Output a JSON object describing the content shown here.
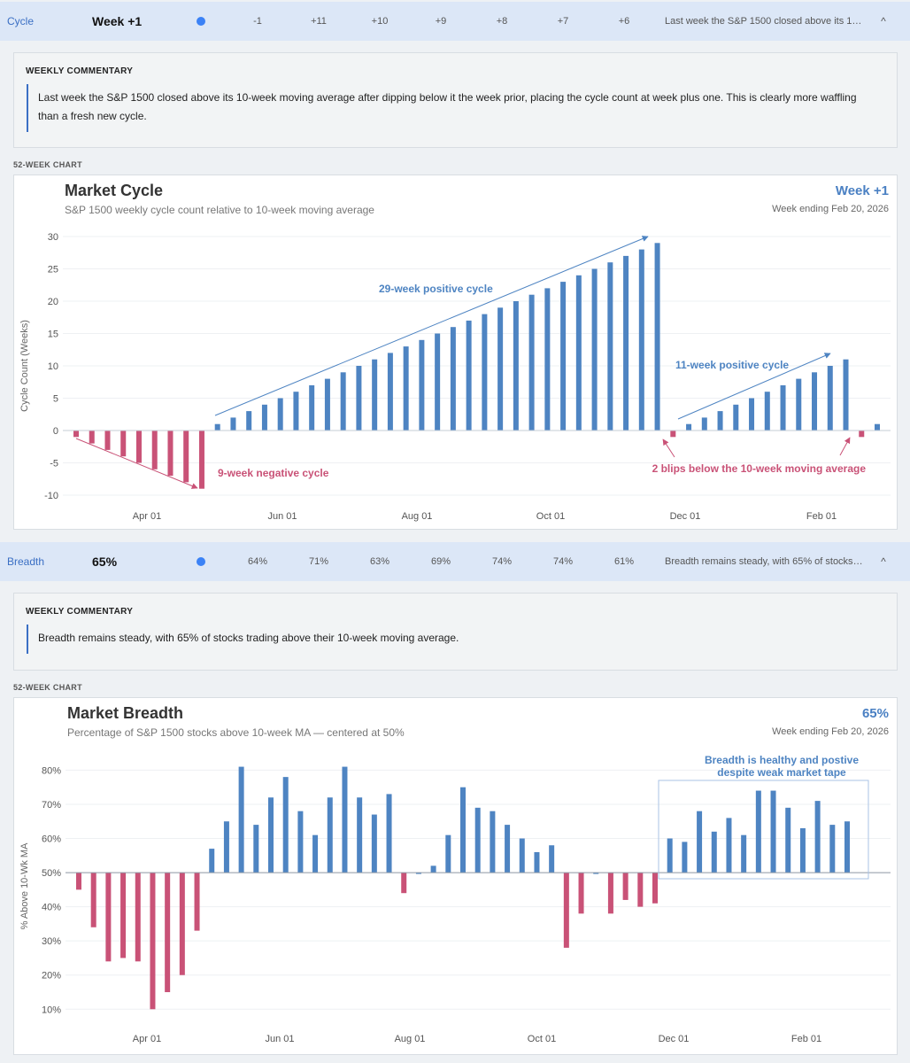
{
  "colors": {
    "positive": "#4e84c2",
    "negative": "#c95277",
    "accent": "#3a6fc4",
    "header_bg": "#dce7f7"
  },
  "cycle": {
    "header": {
      "name": "Cycle",
      "value": "Week +1",
      "weeks": [
        "-1",
        "+11",
        "+10",
        "+9",
        "+8",
        "+7",
        "+6"
      ],
      "summary": "Last week the S&P 1500 closed above its 10-week moving average after dipping below it the week prior, placing the cycle count at week plus one. This is clearly more waffling than a fresh new cycle.",
      "chevron": "^"
    },
    "commentary_title": "WEEKLY COMMENTARY",
    "commentary": "Last week the S&P 1500 closed above its 10-week moving average after dipping below it the week prior, placing the cycle count at week plus one. This is clearly more waffling than a fresh new cycle.",
    "section_label": "52-WEEK CHART",
    "chart_title": "Market Cycle",
    "chart_subtitle": "S&P 1500 weekly cycle count relative to 10-week moving average",
    "chart_headline": "Week +1",
    "chart_week": "Week ending Feb 20, 2026"
  },
  "breadth": {
    "header": {
      "name": "Breadth",
      "value": "65%",
      "weeks": [
        "64%",
        "71%",
        "63%",
        "69%",
        "74%",
        "74%",
        "61%"
      ],
      "summary": "Breadth remains steady, with 65% of stocks trading above their 10-week moving average.",
      "chevron": "^"
    },
    "commentary_title": "WEEKLY COMMENTARY",
    "commentary": "Breadth remains steady, with 65% of stocks trading above their 10-week moving average.",
    "section_label": "52-WEEK CHART",
    "chart_title": "Market Breadth",
    "chart_subtitle": "Percentage of S&P 1500 stocks above 10-week MA — centered at 50%",
    "chart_headline": "65%",
    "chart_week": "Week ending Feb 20, 2026"
  },
  "chart_data": [
    {
      "type": "bar",
      "title": "Market Cycle",
      "subtitle": "S&P 1500 weekly cycle count relative to 10-week moving average",
      "xlabel": "",
      "ylabel": "Cycle Count (Weeks)",
      "ylim": [
        -10,
        30
      ],
      "yticks": [
        -10,
        -5,
        0,
        5,
        10,
        15,
        20,
        25,
        30
      ],
      "xticks": [
        "Apr 01",
        "Jun 01",
        "Aug 01",
        "Oct 01",
        "Dec 01",
        "Feb 01"
      ],
      "baseline": 0,
      "values": [
        -1,
        -2,
        -3,
        -4,
        -5,
        -6,
        -7,
        -8,
        -9,
        1,
        2,
        3,
        4,
        5,
        6,
        7,
        8,
        9,
        10,
        11,
        12,
        13,
        14,
        15,
        16,
        17,
        18,
        19,
        20,
        21,
        22,
        23,
        24,
        25,
        26,
        27,
        28,
        29,
        -1,
        1,
        2,
        3,
        4,
        5,
        6,
        7,
        8,
        9,
        10,
        11,
        -1,
        1
      ],
      "annotations": [
        {
          "text": "9-week negative cycle",
          "color": "negative"
        },
        {
          "text": "29-week positive cycle",
          "color": "positive"
        },
        {
          "text": "11-week positive cycle",
          "color": "positive"
        },
        {
          "text": "2 blips below the 10-week moving average",
          "color": "negative"
        }
      ],
      "grid": true
    },
    {
      "type": "bar",
      "title": "Market Breadth",
      "subtitle": "Percentage of S&P 1500 stocks above 10-week MA — centered at 50%",
      "xlabel": "",
      "ylabel": "% Above 10-Wk MA",
      "ylim": [
        8,
        84
      ],
      "yticks": [
        10,
        20,
        30,
        40,
        50,
        60,
        70,
        80
      ],
      "yticklabels": [
        "10%",
        "20%",
        "30%",
        "40%",
        "50%",
        "60%",
        "70%",
        "80%"
      ],
      "xticks": [
        "Apr 01",
        "Jun 01",
        "Aug 01",
        "Oct 01",
        "Dec 01",
        "Feb 01"
      ],
      "baseline": 50,
      "values": [
        45,
        34,
        24,
        25,
        24,
        10,
        15,
        20,
        33,
        57,
        65,
        81,
        64,
        72,
        78,
        68,
        61,
        72,
        81,
        72,
        67,
        73,
        44,
        50,
        52,
        61,
        75,
        69,
        68,
        64,
        60,
        56,
        58,
        28,
        38,
        50,
        38,
        42,
        40,
        41,
        60,
        59,
        68,
        62,
        66,
        61,
        74,
        74,
        69,
        63,
        71,
        64,
        65
      ],
      "annotations": [
        {
          "text": "Breadth is healthy and postive despite weak market tape",
          "color": "positive"
        }
      ],
      "grid": true
    }
  ]
}
